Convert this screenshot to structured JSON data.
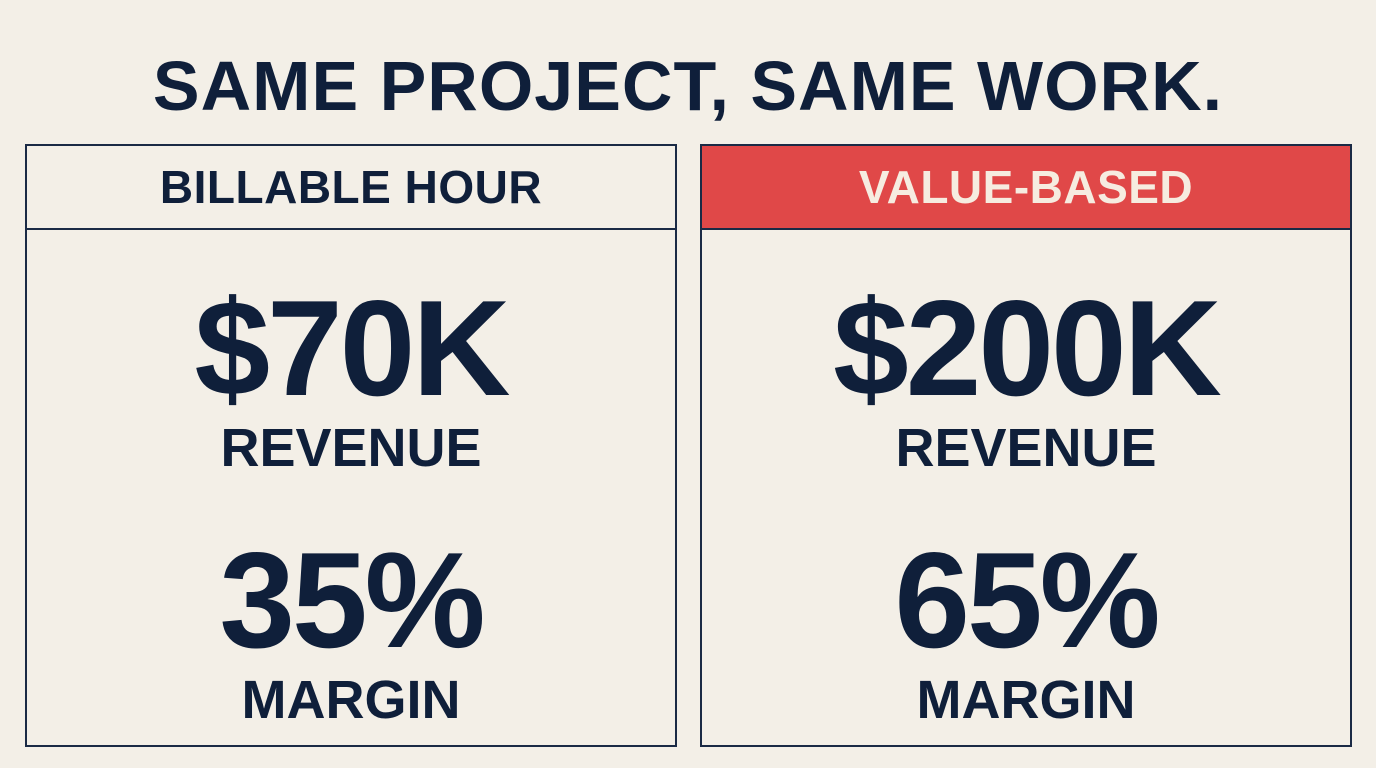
{
  "title": "SAME PROJECT, SAME WORK.",
  "panels": [
    {
      "header": "BILLABLE HOUR",
      "revenue": "$70K",
      "revenue_label": "REVENUE",
      "margin": "35%",
      "margin_label": "MARGIN"
    },
    {
      "header": "VALUE-BASED",
      "revenue": "$200K",
      "revenue_label": "REVENUE",
      "margin": "65%",
      "margin_label": "MARGIN"
    }
  ]
}
